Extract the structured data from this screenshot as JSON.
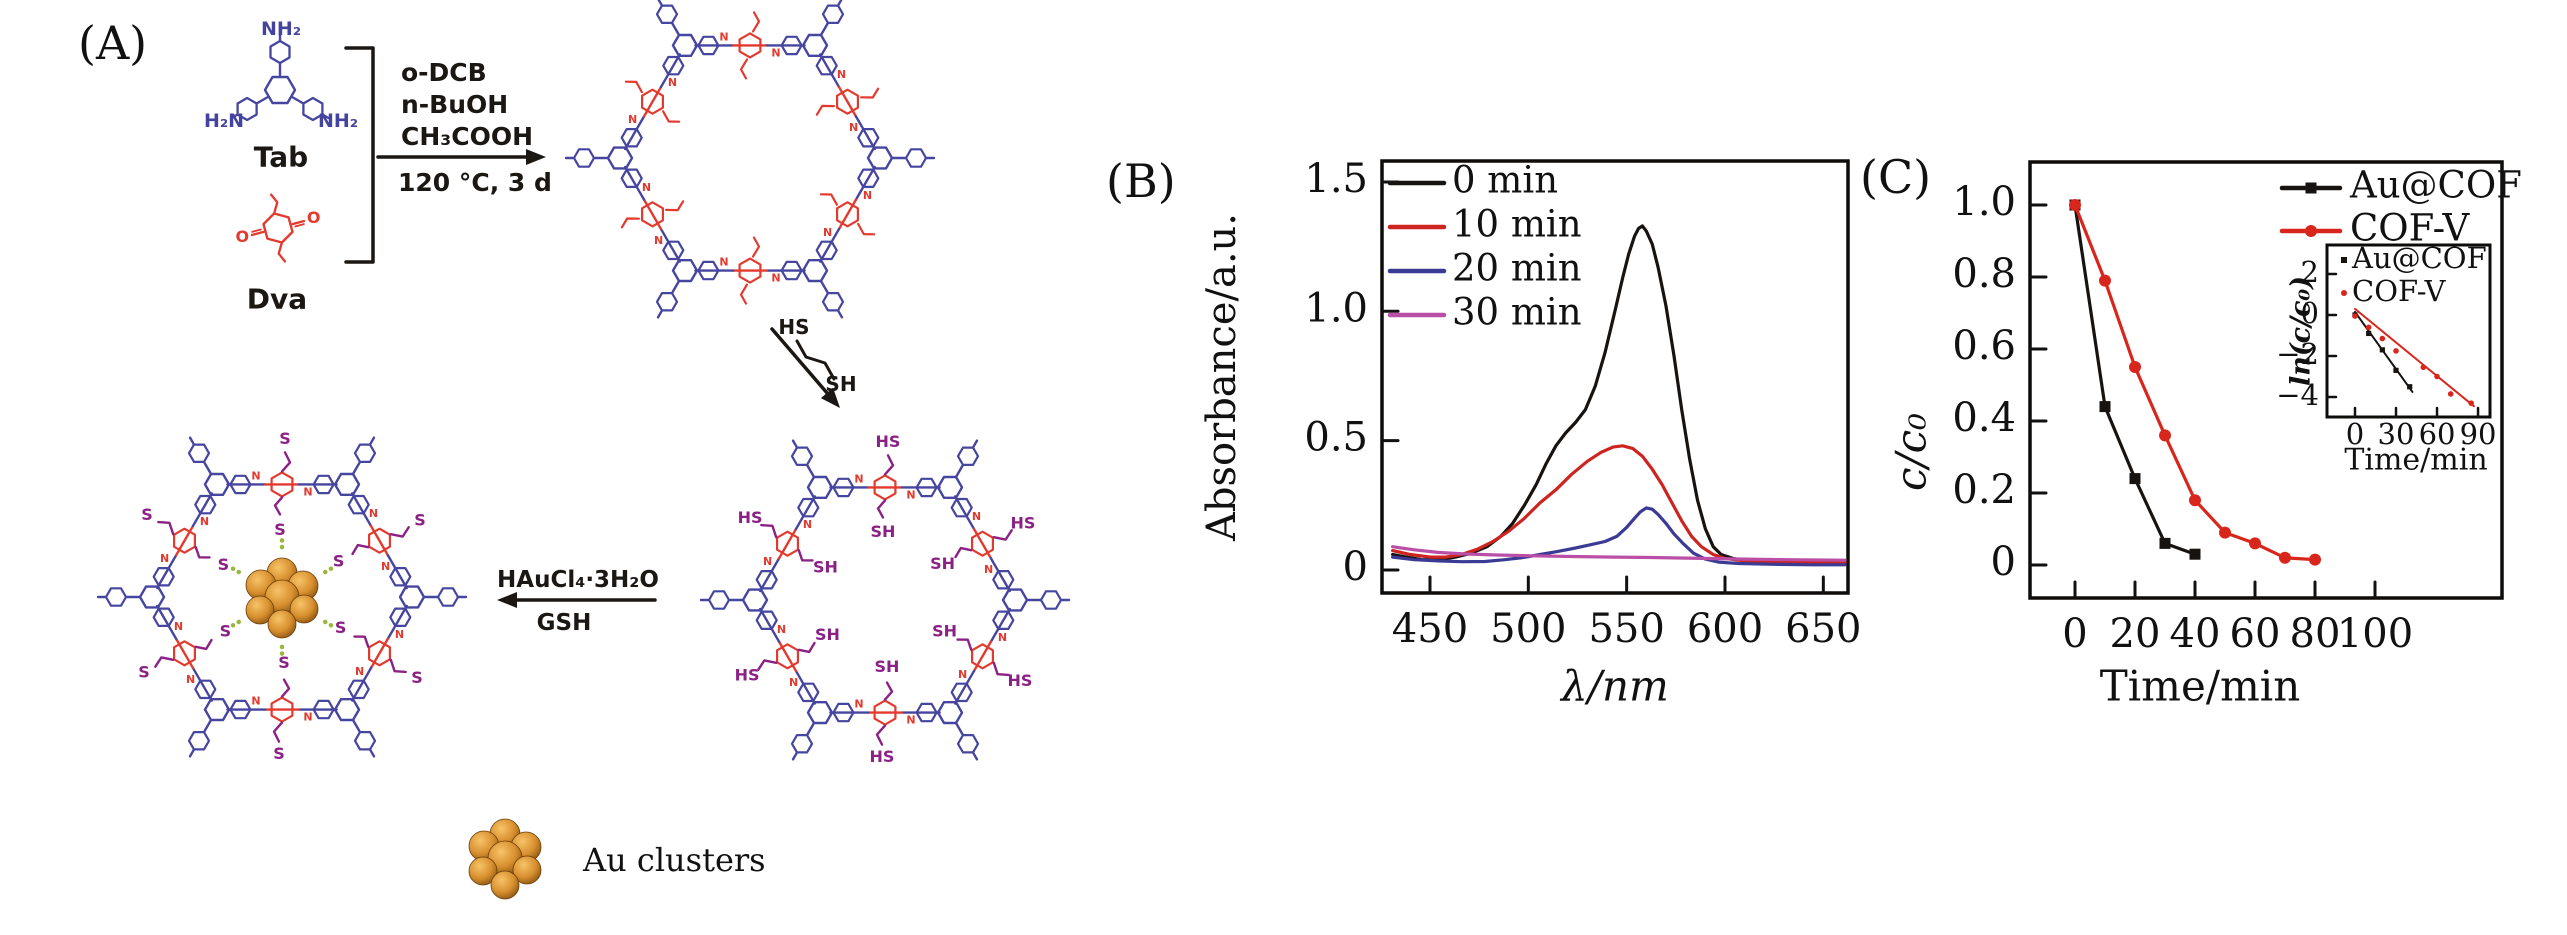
{
  "panel_a": {
    "label": "(A)",
    "monomer_tab": {
      "name": "Tab",
      "amine_top": "NH₂",
      "amine_left": "H₂N",
      "amine_right": "NH₂"
    },
    "monomer_dva": {
      "name": "Dva",
      "aldehyde": "O"
    },
    "step1": {
      "reagents": [
        "o-DCB",
        "n-BuOH",
        "CH₃COOH"
      ],
      "conditions": "120 °C, 3 d"
    },
    "step2": {
      "label_top": "HS",
      "label_bottom": "SH"
    },
    "step3": {
      "line1": "HAuCl₄·3H₂O",
      "line2": "GSH"
    },
    "cluster_legend": "Au clusters",
    "ring_labels": {
      "imine": "N",
      "hs": "HS",
      "sh": "SH",
      "s": "S"
    },
    "colors": {
      "blue": "#46459f",
      "red": "#e23a2e",
      "purple": "#8c2185",
      "green": "#9ab73d",
      "black": "#1b1713",
      "gold_light": "#f7c368",
      "gold_mid": "#d78f2e",
      "gold_dark": "#7c4a0d"
    }
  },
  "panel_b": {
    "label": "(B)"
  },
  "panel_c": {
    "label": "(C)"
  },
  "chart_data": [
    {
      "id": "uv-vis-absorbance",
      "type": "line",
      "panel": "(B)",
      "xlabel": "λ/nm",
      "ylabel": "Absorbance/a.u.",
      "xlim": [
        431,
        662
      ],
      "ylim": [
        -0.09,
        1.58
      ],
      "xticks": [
        450,
        500,
        550,
        600,
        650
      ],
      "yticks": [
        0,
        0.5,
        1.0,
        1.5
      ],
      "grid": false,
      "legend_position": "top-left",
      "series": [
        {
          "name": "0 min",
          "color": "#171310",
          "points": [
            [
              431,
              0.06
            ],
            [
              438,
              0.05
            ],
            [
              446,
              0.04
            ],
            [
              455,
              0.04
            ],
            [
              463,
              0.05
            ],
            [
              471,
              0.065
            ],
            [
              479,
              0.09
            ],
            [
              486,
              0.13
            ],
            [
              492,
              0.18
            ],
            [
              498,
              0.25
            ],
            [
              504,
              0.33
            ],
            [
              509,
              0.41
            ],
            [
              514,
              0.48
            ],
            [
              519,
              0.53
            ],
            [
              524,
              0.57
            ],
            [
              529,
              0.62
            ],
            [
              534,
              0.71
            ],
            [
              539,
              0.84
            ],
            [
              544,
              1.0
            ],
            [
              548,
              1.13
            ],
            [
              551,
              1.22
            ],
            [
              554,
              1.29
            ],
            [
              556,
              1.32
            ],
            [
              558,
              1.33
            ],
            [
              560,
              1.31
            ],
            [
              563,
              1.26
            ],
            [
              566,
              1.17
            ],
            [
              570,
              1.02
            ],
            [
              574,
              0.83
            ],
            [
              578,
              0.62
            ],
            [
              582,
              0.43
            ],
            [
              586,
              0.27
            ],
            [
              590,
              0.16
            ],
            [
              594,
              0.09
            ],
            [
              598,
              0.06
            ],
            [
              604,
              0.045
            ],
            [
              612,
              0.035
            ],
            [
              625,
              0.03
            ],
            [
              640,
              0.03
            ],
            [
              661,
              0.03
            ]
          ]
        },
        {
          "name": "10 min",
          "color": "#cd2420",
          "points": [
            [
              431,
              0.075
            ],
            [
              440,
              0.06
            ],
            [
              450,
              0.05
            ],
            [
              458,
              0.05
            ],
            [
              466,
              0.06
            ],
            [
              474,
              0.08
            ],
            [
              482,
              0.11
            ],
            [
              490,
              0.15
            ],
            [
              498,
              0.2
            ],
            [
              506,
              0.26
            ],
            [
              514,
              0.31
            ],
            [
              522,
              0.37
            ],
            [
              530,
              0.42
            ],
            [
              537,
              0.455
            ],
            [
              543,
              0.475
            ],
            [
              548,
              0.48
            ],
            [
              553,
              0.47
            ],
            [
              558,
              0.44
            ],
            [
              563,
              0.39
            ],
            [
              568,
              0.33
            ],
            [
              573,
              0.26
            ],
            [
              578,
              0.19
            ],
            [
              583,
              0.13
            ],
            [
              588,
              0.09
            ],
            [
              594,
              0.06
            ],
            [
              600,
              0.045
            ],
            [
              610,
              0.035
            ],
            [
              625,
              0.03
            ],
            [
              645,
              0.028
            ],
            [
              661,
              0.028
            ]
          ]
        },
        {
          "name": "20 min",
          "color": "#3b3a94",
          "points": [
            [
              431,
              0.05
            ],
            [
              442,
              0.04
            ],
            [
              454,
              0.035
            ],
            [
              466,
              0.032
            ],
            [
              478,
              0.033
            ],
            [
              488,
              0.04
            ],
            [
              497,
              0.048
            ],
            [
              506,
              0.06
            ],
            [
              515,
              0.072
            ],
            [
              524,
              0.085
            ],
            [
              532,
              0.098
            ],
            [
              539,
              0.11
            ],
            [
              545,
              0.13
            ],
            [
              550,
              0.165
            ],
            [
              554,
              0.2
            ],
            [
              557,
              0.225
            ],
            [
              560,
              0.24
            ],
            [
              563,
              0.235
            ],
            [
              566,
              0.215
            ],
            [
              570,
              0.18
            ],
            [
              574,
              0.14
            ],
            [
              579,
              0.1
            ],
            [
              584,
              0.065
            ],
            [
              590,
              0.042
            ],
            [
              597,
              0.03
            ],
            [
              607,
              0.025
            ],
            [
              625,
              0.022
            ],
            [
              645,
              0.02
            ],
            [
              661,
              0.02
            ]
          ]
        },
        {
          "name": "30 min",
          "color": "#bb4fa7",
          "points": [
            [
              431,
              0.09
            ],
            [
              442,
              0.078
            ],
            [
              454,
              0.068
            ],
            [
              468,
              0.062
            ],
            [
              484,
              0.058
            ],
            [
              502,
              0.055
            ],
            [
              522,
              0.052
            ],
            [
              544,
              0.05
            ],
            [
              566,
              0.048
            ],
            [
              588,
              0.045
            ],
            [
              610,
              0.042
            ],
            [
              632,
              0.04
            ],
            [
              661,
              0.038
            ]
          ]
        }
      ]
    },
    {
      "id": "catalytic-kinetics",
      "type": "scatter-line",
      "panel": "(C)",
      "xlabel": "Time/min",
      "ylabel": "c/c₀",
      "xlim": [
        -15,
        142
      ],
      "ylim": [
        -0.1,
        1.12
      ],
      "xticks": [
        0,
        20,
        40,
        60,
        80,
        100
      ],
      "yticks": [
        0,
        0.2,
        0.4,
        0.6,
        0.8,
        1.0
      ],
      "grid": false,
      "legend_position": "top-right",
      "series": [
        {
          "name": "Au@COF",
          "color": "#171310",
          "marker": "square",
          "points": [
            [
              0,
              1.0
            ],
            [
              10,
              0.44
            ],
            [
              20,
              0.24
            ],
            [
              30,
              0.06
            ],
            [
              40,
              0.03
            ]
          ]
        },
        {
          "name": "COF-V",
          "color": "#d9261c",
          "marker": "circle",
          "points": [
            [
              0,
              1.0
            ],
            [
              10,
              0.79
            ],
            [
              20,
              0.55
            ],
            [
              30,
              0.36
            ],
            [
              40,
              0.18
            ],
            [
              50,
              0.09
            ],
            [
              60,
              0.06
            ],
            [
              70,
              0.02
            ],
            [
              80,
              0.015
            ]
          ]
        }
      ]
    },
    {
      "id": "kinetics-inset",
      "type": "scatter-line",
      "xlabel": "Time/min",
      "ylabel": "ln(c/c₀)",
      "xlim": [
        -20,
        99
      ],
      "ylim": [
        -5.0,
        3.4
      ],
      "xticks": [
        0,
        30,
        60,
        90
      ],
      "yticks": [
        2,
        0,
        -2,
        -4
      ],
      "grid": false,
      "legend_position": "top-left",
      "series": [
        {
          "name": "Au@COF",
          "color": "#171310",
          "marker": "square",
          "points": [
            [
              0,
              0
            ],
            [
              10,
              -0.9
            ],
            [
              20,
              -1.7
            ],
            [
              30,
              -2.7
            ],
            [
              40,
              -3.5
            ]
          ],
          "fit": [
            [
              0,
              0.15
            ],
            [
              42,
              -3.75
            ]
          ]
        },
        {
          "name": "COF-V",
          "color": "#d9261c",
          "marker": "circle",
          "points": [
            [
              0,
              -0.05
            ],
            [
              10,
              -0.6
            ],
            [
              20,
              -1.15
            ],
            [
              30,
              -1.75
            ],
            [
              50,
              -2.55
            ],
            [
              60,
              -3.0
            ],
            [
              70,
              -3.85
            ],
            [
              85,
              -4.3
            ]
          ],
          "fit": [
            [
              0,
              0.3
            ],
            [
              87,
              -4.45
            ]
          ]
        }
      ]
    }
  ]
}
